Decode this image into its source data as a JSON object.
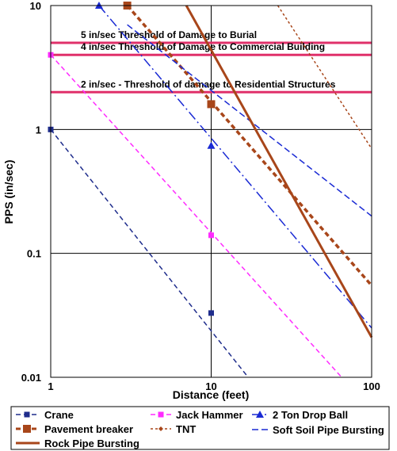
{
  "chart_data": {
    "type": "line",
    "xlabel": "Distance (feet)",
    "ylabel": "PPS (in/sec)",
    "xscale": "log",
    "yscale": "log",
    "xlim": [
      1,
      100
    ],
    "ylim": [
      0.01,
      10
    ],
    "x_ticks": [
      "1",
      "10",
      "100"
    ],
    "y_ticks": [
      "0.01",
      "0.1",
      "1",
      "10"
    ],
    "grid": true,
    "legend_position": "bottom",
    "thresholds": [
      {
        "label": "5 in/sec Threshold of Damage to Burial",
        "value": 5,
        "color": "#e0306a"
      },
      {
        "label": "4 in/sec Threshold of Damage to Commercial Building",
        "value": 4,
        "color": "#e0306a"
      },
      {
        "label": "2 in/sec - Threshold of damage to Residential Structures",
        "value": 2,
        "color": "#e0306a"
      }
    ],
    "series": [
      {
        "name": "Crane",
        "color": "#1f2d8c",
        "dash": "6,4",
        "width": 1.5,
        "marker": "square",
        "x": [
          1,
          17
        ],
        "y": [
          1.0,
          0.01
        ],
        "markers_x": [
          1,
          10
        ],
        "markers_y": [
          1.0,
          0.033
        ]
      },
      {
        "name": "Jack Hammer",
        "color": "#ff2bff",
        "dash": "6,4",
        "width": 1.5,
        "marker": "square",
        "x": [
          1,
          65
        ],
        "y": [
          4.0,
          0.01
        ],
        "markers_x": [
          1,
          10
        ],
        "markers_y": [
          4.0,
          0.14
        ]
      },
      {
        "name": "2 Ton Drop Ball",
        "color": "#1a2ad4",
        "dash": "12,4,2,4",
        "width": 1.5,
        "marker": "triangle",
        "x": [
          2,
          100
        ],
        "y": [
          10,
          0.025
        ],
        "markers_x": [
          2,
          10
        ],
        "markers_y": [
          10,
          0.74
        ]
      },
      {
        "name": "Pavement breaker",
        "color": "#a8461a",
        "dash": "6,4",
        "width": 3.5,
        "marker": "square-large",
        "x": [
          3,
          100
        ],
        "y": [
          10,
          0.055
        ],
        "markers_x": [
          3,
          10
        ],
        "markers_y": [
          10,
          1.6
        ]
      },
      {
        "name": "TNT",
        "color": "#a8461a",
        "dash": "3,3",
        "width": 1.5,
        "marker": "diamond",
        "x": [
          26,
          100
        ],
        "y": [
          10,
          0.7
        ],
        "markers_x": [],
        "markers_y": []
      },
      {
        "name": "Soft Soil Pipe Bursting",
        "color": "#1a2ad4",
        "dash": "8,4",
        "width": 1.5,
        "marker": "none",
        "x": [
          3,
          100
        ],
        "y": [
          7,
          0.2
        ],
        "markers_x": [],
        "markers_y": []
      },
      {
        "name": "Rock Pipe Bursting",
        "color": "#a8461a",
        "dash": "",
        "width": 3,
        "marker": "none",
        "x": [
          7,
          100
        ],
        "y": [
          10,
          0.021
        ],
        "markers_x": [],
        "markers_y": []
      }
    ]
  }
}
